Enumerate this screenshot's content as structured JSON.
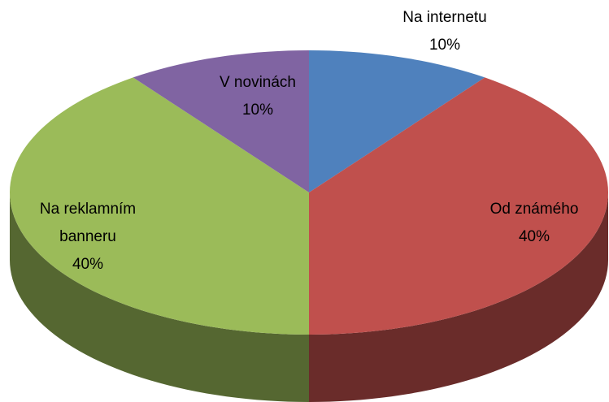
{
  "chart_data": {
    "type": "pie",
    "categories": [
      "Na internetu",
      "Od známého",
      "Na reklamním banneru",
      "V novinách"
    ],
    "values": [
      10,
      40,
      40,
      10
    ],
    "value_labels": [
      "10%",
      "40%",
      "40%",
      "10%"
    ],
    "colors": [
      "#4f81bd",
      "#c0504d",
      "#9bbb59",
      "#8064a2"
    ]
  }
}
